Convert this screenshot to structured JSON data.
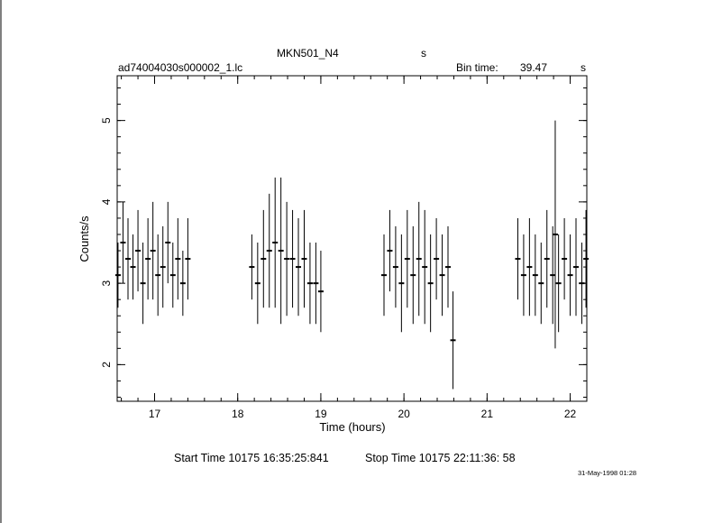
{
  "header": {
    "object": "MKN501_N4",
    "unit_top": "s",
    "file": "ad74004030s000002_1.lc",
    "bin_label": "Bin time:",
    "bin_value": "39.47",
    "bin_unit": "s"
  },
  "footer": {
    "start": "Start Time 10175 16:35:25:841",
    "stop": "Stop Time 10175 22:11:36: 58",
    "stamp": "31-May-1998 01:28"
  },
  "chart_data": {
    "type": "scatter",
    "xlabel": "Time (hours)",
    "ylabel": "Counts/s",
    "xlim": [
      16.55,
      22.2
    ],
    "ylim": [
      1.55,
      5.55
    ],
    "xticks": [
      17,
      18,
      19,
      20,
      21,
      22
    ],
    "yticks": [
      2,
      3,
      4,
      5
    ],
    "grid": false,
    "series": [
      {
        "segments": [
          {
            "x": [
              16.56,
              16.62,
              16.68,
              16.74,
              16.8,
              16.86,
              16.92,
              16.98,
              17.04,
              17.1,
              17.16,
              17.22,
              17.28,
              17.34,
              17.4
            ],
            "y": [
              3.1,
              3.5,
              3.3,
              3.2,
              3.4,
              3.0,
              3.3,
              3.4,
              3.1,
              3.2,
              3.5,
              3.1,
              3.3,
              3.0,
              3.3
            ],
            "err": [
              0.4,
              0.5,
              0.5,
              0.4,
              0.5,
              0.5,
              0.5,
              0.6,
              0.5,
              0.5,
              0.5,
              0.4,
              0.5,
              0.4,
              0.5
            ]
          },
          {
            "x": [
              18.17,
              18.24,
              18.31,
              18.38,
              18.45,
              18.52,
              18.59,
              18.66,
              18.73,
              18.8,
              18.87,
              18.94,
              19.0
            ],
            "y": [
              3.2,
              3.0,
              3.3,
              3.4,
              3.5,
              3.4,
              3.3,
              3.3,
              3.2,
              3.3,
              3.0,
              3.0,
              2.9
            ],
            "err": [
              0.4,
              0.5,
              0.6,
              0.7,
              0.8,
              0.9,
              0.7,
              0.6,
              0.6,
              0.6,
              0.5,
              0.5,
              0.5
            ]
          },
          {
            "x": [
              19.76,
              19.83,
              19.9,
              19.97,
              20.04,
              20.11,
              20.18,
              20.25,
              20.32,
              20.39,
              20.46,
              20.53,
              20.59
            ],
            "y": [
              3.1,
              3.4,
              3.2,
              3.0,
              3.3,
              3.1,
              3.3,
              3.2,
              3.0,
              3.3,
              3.1,
              3.2,
              2.3
            ],
            "err": [
              0.5,
              0.5,
              0.5,
              0.6,
              0.6,
              0.6,
              0.7,
              0.7,
              0.6,
              0.5,
              0.5,
              0.5,
              0.6
            ]
          },
          {
            "x": [
              21.37,
              21.44,
              21.51,
              21.58,
              21.65,
              21.72,
              21.79,
              21.82,
              21.86,
              21.93,
              22.0,
              22.07,
              22.14,
              22.19
            ],
            "y": [
              3.3,
              3.1,
              3.2,
              3.1,
              3.0,
              3.3,
              3.1,
              3.6,
              3.0,
              3.3,
              3.1,
              3.2,
              3.0,
              3.3
            ],
            "err": [
              0.5,
              0.5,
              0.6,
              0.5,
              0.5,
              0.6,
              0.6,
              1.4,
              0.6,
              0.5,
              0.5,
              0.6,
              0.5,
              0.6
            ]
          }
        ]
      }
    ]
  }
}
